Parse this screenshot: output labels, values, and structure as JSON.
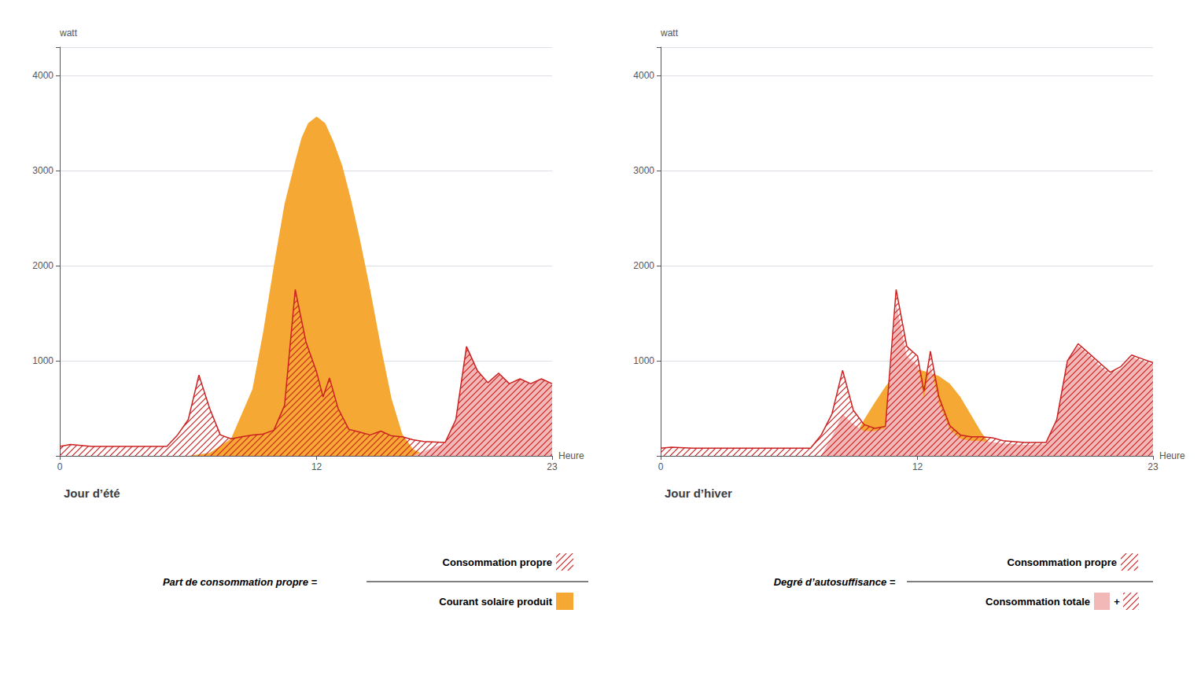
{
  "chart_data": [
    {
      "type": "area",
      "title": "Jour d’été",
      "xlabel": "Heure",
      "ylabel": "watt",
      "xlim": [
        0,
        23
      ],
      "ylim": [
        0,
        4300
      ],
      "xticks": [
        0,
        12,
        23
      ],
      "yticks": [
        1000,
        2000,
        3000,
        4000
      ],
      "grid": true,
      "series": [
        {
          "type": "area",
          "color": "#F5A833",
          "x": [
            0,
            6.0,
            7.0,
            8.0,
            9.0,
            9.5,
            10.0,
            10.5,
            11.0,
            11.3,
            11.6,
            12.0,
            12.4,
            12.8,
            13.2,
            13.6,
            14.0,
            14.5,
            15.0,
            15.5,
            16.0,
            16.5,
            17.0,
            17.5,
            18.0,
            23
          ],
          "values": [
            0,
            0,
            30,
            180,
            700,
            1300,
            2000,
            2650,
            3100,
            3350,
            3500,
            3570,
            3500,
            3300,
            3050,
            2700,
            2300,
            1750,
            1150,
            600,
            230,
            70,
            15,
            3,
            0,
            0
          ]
        },
        {
          "type": "area",
          "color": "#F2B8B8",
          "x": [
            0,
            16.5,
            17.0,
            18.0,
            18.5,
            19.0,
            19.5,
            20.0,
            20.5,
            21.0,
            21.5,
            22.0,
            22.5,
            23.0
          ],
          "values": [
            0,
            0,
            50,
            130,
            380,
            1150,
            900,
            770,
            870,
            760,
            810,
            760,
            810,
            760
          ]
        },
        {
          "type": "hatch",
          "color": "#CC2222",
          "x": [
            0,
            0.5,
            1.5,
            3.0,
            5.0,
            5.5,
            6.0,
            6.5,
            7.0,
            7.5,
            8.0,
            8.5,
            9.0,
            9.5,
            10.0,
            10.5,
            11.0,
            11.5,
            12.0,
            12.3,
            12.6,
            13.0,
            13.5,
            14.0,
            14.5,
            15.0,
            15.5,
            16.0,
            16.5,
            17.0,
            18.0,
            18.5,
            19.0,
            19.5,
            20.0,
            20.5,
            21.0,
            21.5,
            22.0,
            22.5,
            23.0
          ],
          "values": [
            100,
            120,
            100,
            100,
            100,
            220,
            380,
            850,
            500,
            220,
            180,
            200,
            220,
            230,
            270,
            530,
            1750,
            1200,
            880,
            620,
            820,
            500,
            280,
            250,
            220,
            260,
            210,
            200,
            170,
            150,
            140,
            380,
            1150,
            900,
            770,
            870,
            760,
            810,
            760,
            810,
            760
          ]
        }
      ],
      "annotations": [
        "Part de consommation propre =",
        "Consommation propre",
        "Courant solaire produit"
      ]
    },
    {
      "type": "area",
      "title": "Jour d’hiver",
      "xlabel": "Heure",
      "ylabel": "watt",
      "xlim": [
        0,
        23
      ],
      "ylim": [
        0,
        4300
      ],
      "xticks": [
        0,
        12,
        23
      ],
      "yticks": [
        1000,
        2000,
        3000,
        4000
      ],
      "grid": true,
      "series": [
        {
          "type": "area",
          "color": "#F5A833",
          "x": [
            0,
            8.0,
            8.5,
            9.0,
            9.5,
            10.0,
            10.5,
            11.0,
            11.5,
            12.0,
            12.5,
            13.0,
            13.5,
            14.0,
            14.5,
            15.0,
            15.5,
            16.0,
            23
          ],
          "values": [
            0,
            0,
            40,
            180,
            380,
            560,
            730,
            870,
            900,
            910,
            880,
            840,
            760,
            620,
            430,
            240,
            90,
            10,
            0
          ]
        },
        {
          "type": "area",
          "color": "#F2B8B8",
          "x": [
            0,
            7.5,
            8.0,
            8.5,
            9.0,
            9.5,
            10.0,
            10.5,
            11.0,
            11.5,
            12.0,
            12.3,
            12.6,
            13.0,
            13.5,
            14.0,
            14.5,
            15.0,
            15.5,
            16.0,
            17.0,
            18.0,
            18.5,
            19.0,
            19.5,
            20.0,
            20.5,
            21.0,
            21.5,
            22.0,
            22.5,
            23.0
          ],
          "values": [
            0,
            0,
            200,
            440,
            330,
            260,
            260,
            290,
            1600,
            1050,
            950,
            600,
            950,
            550,
            280,
            180,
            160,
            155,
            145,
            130,
            115,
            125,
            380,
            1000,
            1160,
            1060,
            950,
            860,
            920,
            1040,
            1000,
            960
          ]
        },
        {
          "type": "hatch",
          "color": "#CC2222",
          "x": [
            0,
            0.5,
            1.5,
            3.0,
            5.0,
            6.0,
            7.0,
            7.5,
            8.0,
            8.5,
            9.0,
            9.5,
            10.0,
            10.5,
            11.0,
            11.5,
            12.0,
            12.3,
            12.6,
            13.0,
            13.5,
            14.0,
            14.5,
            15.0,
            15.5,
            16.0,
            17.0,
            18.0,
            18.5,
            19.0,
            19.5,
            20.0,
            20.5,
            21.0,
            21.5,
            22.0,
            22.5,
            23.0
          ],
          "values": [
            80,
            90,
            80,
            80,
            80,
            80,
            80,
            220,
            440,
            900,
            480,
            330,
            290,
            310,
            1750,
            1150,
            1050,
            680,
            1100,
            620,
            320,
            220,
            200,
            200,
            190,
            160,
            140,
            140,
            380,
            1000,
            1180,
            1080,
            980,
            880,
            940,
            1060,
            1020,
            980
          ]
        }
      ],
      "annotations": [
        "Degré d’autosuffisance =",
        "Consommation propre",
        "Consommation totale",
        "+"
      ]
    }
  ]
}
